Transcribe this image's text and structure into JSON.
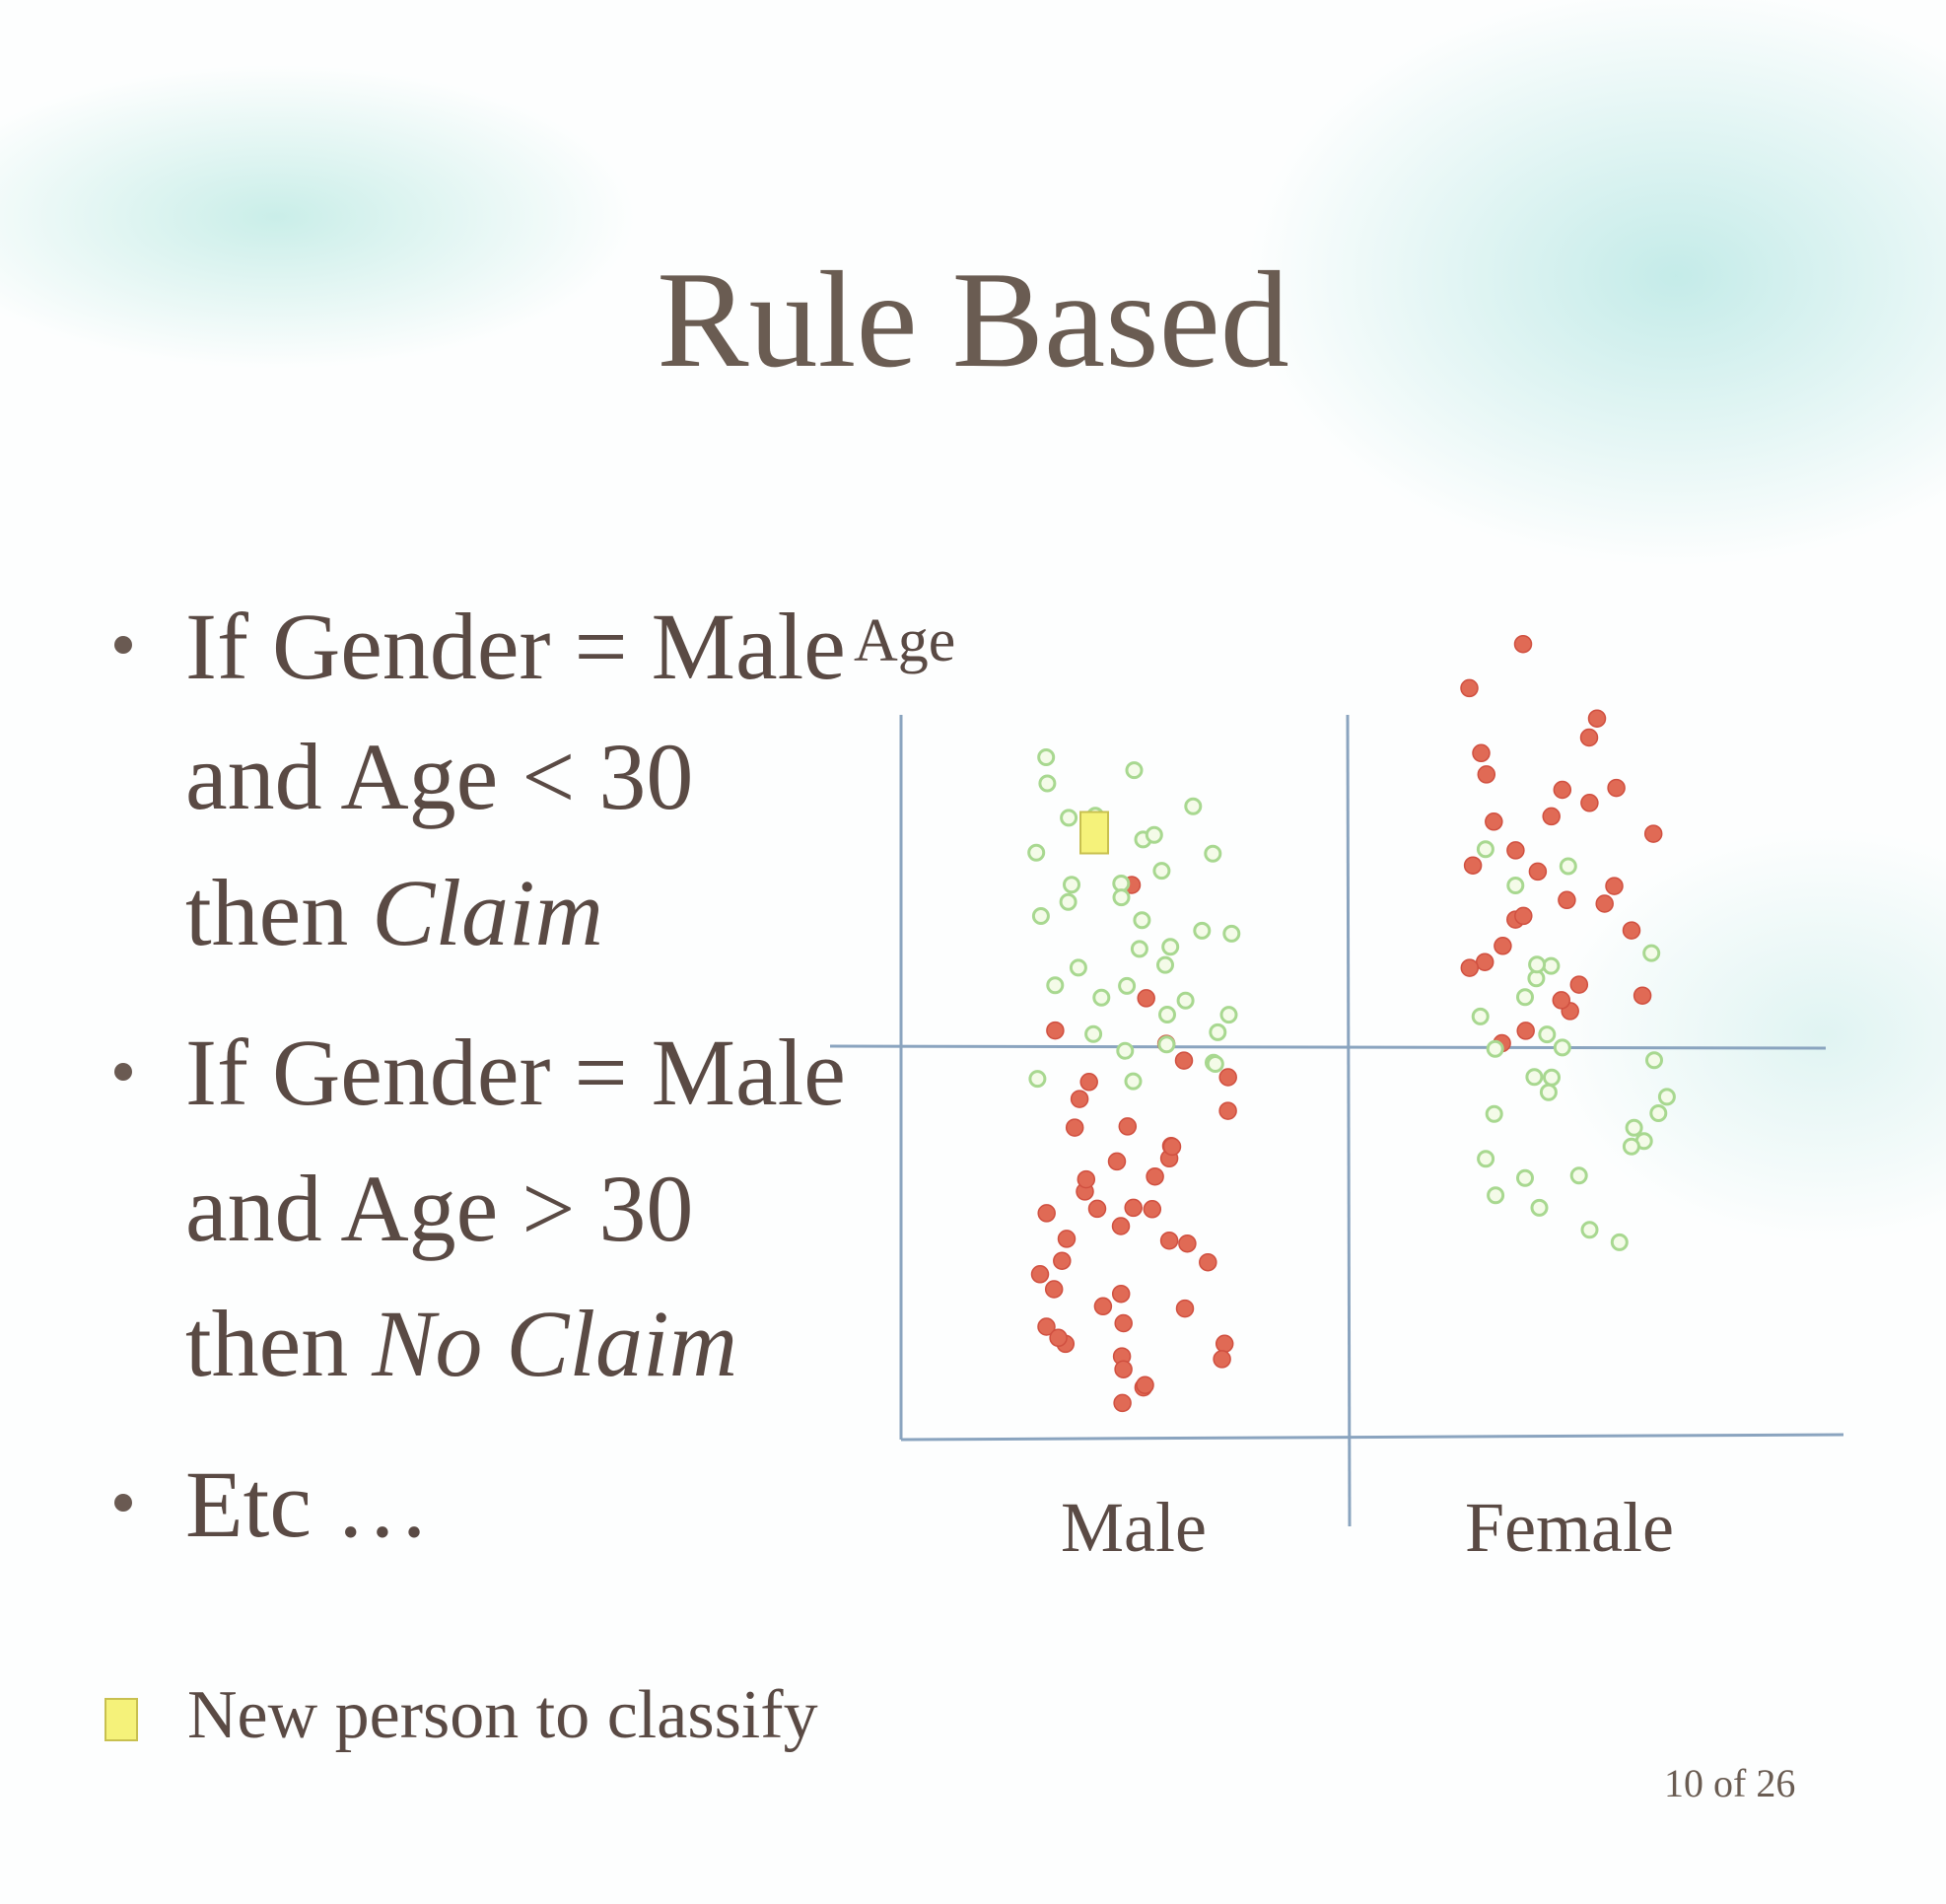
{
  "slide": {
    "title": "Rule Based",
    "bullets": [
      {
        "lines": [
          {
            "text": "If Gender = Male"
          },
          {
            "text": "and Age < 30"
          },
          {
            "text": "then ",
            "emph": "Claim"
          }
        ]
      },
      {
        "lines": [
          {
            "text": "If Gender = Male"
          },
          {
            "text": "and Age > 30"
          },
          {
            "text": "then ",
            "emph": "No Claim"
          }
        ]
      },
      {
        "lines": [
          {
            "text": "Etc …"
          }
        ]
      }
    ],
    "legend": {
      "label": "New person to classify"
    },
    "page_number": "10 of 26"
  },
  "chart_data": {
    "type": "scatter",
    "ylabel": "Age",
    "categories": [
      "Male",
      "Female"
    ],
    "age_threshold": 30,
    "grid": false,
    "series": [
      {
        "class": "claim",
        "color": "#e06a55",
        "points": [
          [
            0,
            40
          ],
          [
            0,
            15
          ],
          [
            0,
            11
          ],
          [
            0,
            13
          ],
          [
            0,
            20
          ],
          [
            0,
            28
          ],
          [
            0,
            30
          ],
          [
            0,
            20
          ],
          [
            0,
            23
          ],
          [
            0,
            33
          ],
          [
            0,
            18
          ],
          [
            0,
            12
          ],
          [
            0,
            31
          ],
          [
            0,
            28
          ],
          [
            0,
            23
          ],
          [
            0,
            18
          ],
          [
            0,
            12
          ],
          [
            0,
            8
          ],
          [
            0,
            9
          ],
          [
            0,
            17
          ],
          [
            0,
            14
          ],
          [
            0,
            20
          ],
          [
            0,
            27
          ],
          [
            0,
            25
          ],
          [
            0,
            22
          ],
          [
            0,
            18
          ],
          [
            0,
            12
          ],
          [
            0,
            10
          ],
          [
            0,
            16
          ],
          [
            0,
            24
          ],
          [
            0,
            26
          ],
          [
            0,
            19
          ],
          [
            0,
            15
          ],
          [
            0,
            13
          ],
          [
            0,
            21
          ],
          [
            0,
            29
          ],
          [
            0,
            22
          ],
          [
            0,
            17
          ],
          [
            0,
            11
          ],
          [
            0,
            14
          ],
          [
            0,
            9
          ],
          [
            0,
            20
          ],
          [
            0,
            25
          ],
          [
            0,
            24
          ],
          [
            1,
            55
          ],
          [
            1,
            52
          ],
          [
            1,
            49
          ],
          [
            1,
            47
          ],
          [
            1,
            46
          ],
          [
            1,
            45
          ],
          [
            1,
            44
          ],
          [
            1,
            43
          ],
          [
            1,
            41
          ],
          [
            1,
            40
          ],
          [
            1,
            39
          ],
          [
            1,
            38
          ],
          [
            1,
            36
          ],
          [
            1,
            35
          ],
          [
            1,
            34
          ],
          [
            1,
            33
          ],
          [
            1,
            32
          ],
          [
            1,
            31
          ],
          [
            1,
            48
          ],
          [
            1,
            42
          ],
          [
            1,
            37
          ],
          [
            1,
            30
          ],
          [
            1,
            50
          ],
          [
            1,
            44
          ],
          [
            1,
            39
          ],
          [
            1,
            35
          ],
          [
            1,
            33
          ],
          [
            1,
            41
          ],
          [
            1,
            46
          ],
          [
            1,
            38
          ]
        ]
      },
      {
        "class": "no_claim",
        "color": "#a8d890",
        "points": [
          [
            0,
            48
          ],
          [
            0,
            46
          ],
          [
            0,
            44
          ],
          [
            0,
            42
          ],
          [
            0,
            40
          ],
          [
            0,
            38
          ],
          [
            0,
            36
          ],
          [
            0,
            34
          ],
          [
            0,
            32
          ],
          [
            0,
            31
          ],
          [
            0,
            30
          ],
          [
            0,
            29
          ],
          [
            0,
            28
          ],
          [
            0,
            45
          ],
          [
            0,
            43
          ],
          [
            0,
            41
          ],
          [
            0,
            39
          ],
          [
            0,
            37
          ],
          [
            0,
            35
          ],
          [
            0,
            33
          ],
          [
            0,
            47
          ],
          [
            0,
            42
          ],
          [
            0,
            38
          ],
          [
            0,
            34
          ],
          [
            0,
            30
          ],
          [
            0,
            36
          ],
          [
            0,
            40
          ],
          [
            0,
            44
          ],
          [
            0,
            32
          ],
          [
            0,
            28
          ],
          [
            0,
            39
          ],
          [
            0,
            35
          ],
          [
            0,
            31
          ],
          [
            0,
            43
          ],
          [
            0,
            37
          ],
          [
            0,
            33
          ],
          [
            0,
            29
          ],
          [
            1,
            42
          ],
          [
            1,
            41
          ],
          [
            1,
            35
          ],
          [
            1,
            34
          ],
          [
            1,
            32
          ],
          [
            1,
            30
          ],
          [
            1,
            29
          ],
          [
            1,
            28
          ],
          [
            1,
            27
          ],
          [
            1,
            26
          ],
          [
            1,
            24
          ],
          [
            1,
            22
          ],
          [
            1,
            20
          ],
          [
            1,
            18
          ],
          [
            1,
            40
          ],
          [
            1,
            36
          ],
          [
            1,
            31
          ],
          [
            1,
            25
          ],
          [
            1,
            23
          ],
          [
            1,
            21
          ],
          [
            1,
            19
          ],
          [
            1,
            33
          ],
          [
            1,
            28
          ],
          [
            1,
            26
          ],
          [
            1,
            24
          ],
          [
            1,
            22
          ],
          [
            1,
            30
          ],
          [
            1,
            27
          ],
          [
            1,
            35
          ]
        ]
      },
      {
        "class": "new_person",
        "color": "#f5f27a",
        "points": [
          [
            0,
            43
          ]
        ]
      }
    ]
  }
}
